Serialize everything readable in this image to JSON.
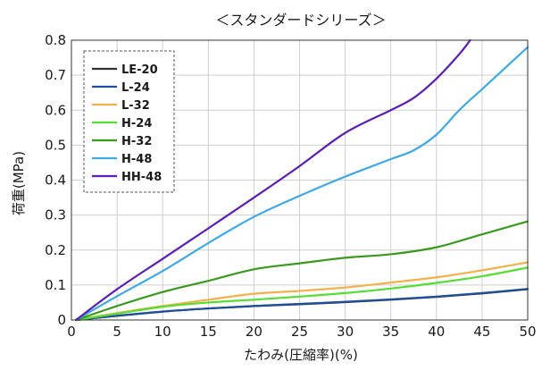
{
  "chart_data": {
    "type": "line",
    "title": "＜スタンダードシリーズ＞",
    "xlabel": "たわみ(圧縮率)(%)",
    "ylabel": "荷重(MPa)",
    "xlim": [
      0,
      50
    ],
    "ylim": [
      0,
      0.8
    ],
    "x_ticks": [
      "0",
      "5",
      "10",
      "15",
      "20",
      "25",
      "30",
      "35",
      "40",
      "45",
      "50"
    ],
    "y_ticks": [
      "0",
      "0.1",
      "0.2",
      "0.3",
      "0.4",
      "0.5",
      "0.6",
      "0.7",
      "0.8"
    ],
    "grid": true,
    "legend_position": "top-left",
    "series": [
      {
        "name": "LE-20",
        "color": "#333333",
        "x": [
          0.5,
          5,
          10,
          15,
          20,
          25,
          30,
          35,
          40,
          45,
          50
        ],
        "y": [
          0,
          0.012,
          0.024,
          0.033,
          0.04,
          0.045,
          0.051,
          0.058,
          0.066,
          0.076,
          0.088
        ]
      },
      {
        "name": "L-24",
        "color": "#1f4e9c",
        "x": [
          0.5,
          5,
          10,
          15,
          20,
          25,
          30,
          35,
          40,
          45,
          50
        ],
        "y": [
          0,
          0.012,
          0.024,
          0.033,
          0.04,
          0.046,
          0.052,
          0.059,
          0.067,
          0.077,
          0.089
        ]
      },
      {
        "name": "L-32",
        "color": "#f5b04a",
        "x": [
          0.5,
          5,
          10,
          15,
          20,
          25,
          30,
          35,
          40,
          45,
          50
        ],
        "y": [
          0,
          0.02,
          0.04,
          0.058,
          0.075,
          0.083,
          0.093,
          0.107,
          0.122,
          0.142,
          0.165
        ]
      },
      {
        "name": "H-24",
        "color": "#55dd33",
        "x": [
          0.5,
          5,
          10,
          15,
          20,
          25,
          30,
          35,
          40,
          45,
          50
        ],
        "y": [
          0,
          0.018,
          0.038,
          0.05,
          0.058,
          0.067,
          0.077,
          0.09,
          0.106,
          0.125,
          0.15
        ]
      },
      {
        "name": "H-32",
        "color": "#3a9a1e",
        "x": [
          0.5,
          5,
          10,
          15,
          20,
          25,
          30,
          35,
          40,
          45,
          50
        ],
        "y": [
          0,
          0.04,
          0.08,
          0.112,
          0.145,
          0.162,
          0.178,
          0.188,
          0.208,
          0.245,
          0.282
        ]
      },
      {
        "name": "H-48",
        "color": "#3fa9e6",
        "x": [
          0.5,
          5,
          10,
          15,
          20,
          25,
          30,
          35,
          37.5,
          40,
          42.5,
          45,
          47.5,
          50
        ],
        "y": [
          0,
          0.068,
          0.14,
          0.22,
          0.295,
          0.355,
          0.41,
          0.46,
          0.485,
          0.53,
          0.6,
          0.66,
          0.72,
          0.78
        ]
      },
      {
        "name": "HH-48",
        "color": "#5a1fb5",
        "x": [
          0.5,
          5,
          10,
          15,
          20,
          25,
          30,
          35,
          37.5,
          40,
          42.5,
          44
        ],
        "y": [
          0,
          0.088,
          0.175,
          0.262,
          0.35,
          0.44,
          0.535,
          0.6,
          0.635,
          0.69,
          0.76,
          0.81
        ]
      }
    ]
  }
}
